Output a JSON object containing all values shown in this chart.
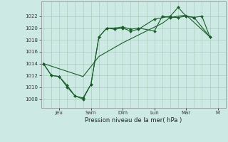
{
  "background_color": "#cceae3",
  "grid_color": "#aaccbb",
  "line_color": "#1a5c2a",
  "marker_color": "#1a5c2a",
  "xlabel": "Pression niveau de la mer( hPa )",
  "ylim": [
    1006.5,
    1024.5
  ],
  "yticks": [
    1008,
    1010,
    1012,
    1014,
    1016,
    1018,
    1020,
    1022
  ],
  "xlim": [
    -0.15,
    11.5
  ],
  "major_xtick_pos": [
    1,
    3,
    5,
    7,
    9,
    11
  ],
  "major_xtick_labels": [
    "Jeu",
    "Sam",
    "Dim",
    "Lun",
    "Mar",
    "M"
  ],
  "minor_xtick_pos": [
    0,
    0.5,
    1,
    1.5,
    2,
    2.5,
    3,
    3.5,
    4,
    4.5,
    5,
    5.5,
    6,
    6.5,
    7,
    7.5,
    8,
    8.5,
    9,
    9.5,
    10,
    10.5,
    11,
    11.5
  ],
  "s1x": [
    0,
    0.5,
    1.0,
    1.5,
    2.0,
    2.5,
    3.0,
    3.5,
    4.0,
    4.5,
    5.0,
    5.5,
    6.0,
    7.0,
    8.0,
    8.5,
    9.0,
    9.5,
    10.0,
    10.5
  ],
  "s1y": [
    1014,
    1012,
    1011.8,
    1010.3,
    1008.5,
    1008.2,
    1010.5,
    1018.5,
    1020.0,
    1019.8,
    1020.0,
    1019.5,
    1019.8,
    1021.5,
    1022.0,
    1023.5,
    1022.0,
    1021.8,
    1022.0,
    1018.5
  ],
  "s2x": [
    0,
    0.5,
    1.0,
    1.5,
    2.0,
    2.5,
    3.0,
    3.5,
    4.0,
    4.5,
    5.0,
    5.5,
    6.0,
    7.0,
    7.5,
    8.0,
    8.5,
    9.0,
    9.5,
    10.5
  ],
  "s2y": [
    1014,
    1012,
    1011.8,
    1010,
    1008.5,
    1008,
    1010.5,
    1018.5,
    1020.0,
    1020.0,
    1020.2,
    1019.8,
    1020.0,
    1019.5,
    1022.0,
    1021.8,
    1021.8,
    1022.0,
    1021.8,
    1018.5
  ],
  "s3x": [
    0,
    2.5,
    3.5,
    5.0,
    6.5,
    7.5,
    8.0,
    8.5,
    9.0,
    10.5
  ],
  "s3y": [
    1014,
    1011.8,
    1015.2,
    1017.5,
    1019.5,
    1020.8,
    1021.8,
    1022.0,
    1022.2,
    1018.5
  ]
}
